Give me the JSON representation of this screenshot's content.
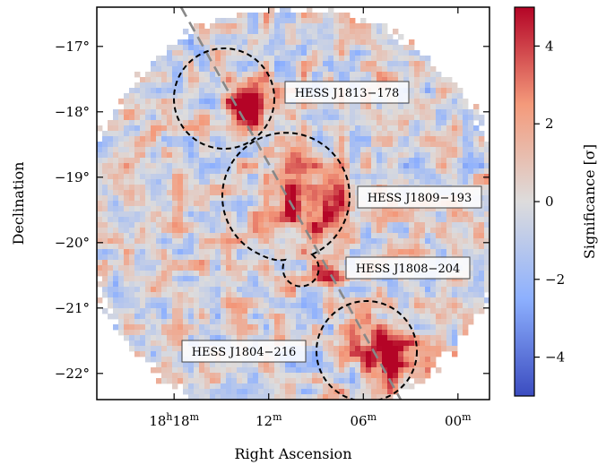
{
  "chart_data": {
    "type": "heatmap",
    "title": "",
    "xlabel": "Right Ascension",
    "ylabel": "Declination",
    "x_ticks": [
      {
        "h": "18",
        "m": "18",
        "label_sup_h": "h",
        "label_sup_m": "m",
        "ra_min": 18
      },
      {
        "h": "",
        "m": "12",
        "label_sup_m": "m",
        "ra_min": 12
      },
      {
        "h": "",
        "m": "06",
        "label_sup_m": "m",
        "ra_min": 6
      },
      {
        "h": "",
        "m": "00",
        "label_sup_m": "m",
        "ra_min": 0
      }
    ],
    "y_ticks": [
      "−17°",
      "−18°",
      "−19°",
      "−20°",
      "−21°",
      "−22°"
    ],
    "y_tick_values": [
      -17,
      -18,
      -19,
      -20,
      -21,
      -22
    ],
    "xlim_ra_min": [
      22.9,
      -2.0
    ],
    "ylim_dec": [
      -22.4,
      -16.4
    ],
    "colorbar": {
      "label": "Significance [σ]",
      "range": [
        -5,
        5
      ],
      "ticks": [
        "4",
        "2",
        "0",
        "−2",
        "−4"
      ],
      "tick_values": [
        4,
        2,
        0,
        -2,
        -4
      ],
      "cmap": "coolwarm",
      "low_color": "#3b4cc0",
      "mid_color": "#dddcdc",
      "high_color": "#b40426"
    },
    "sources": [
      {
        "name": "HESS J1813−178",
        "ra_min": 13.4,
        "dec": -17.85,
        "peak_sigma": 6
      },
      {
        "name": "HESS J1809−193",
        "ra_min": 9.4,
        "dec": -19.35,
        "peak_sigma": 5
      },
      {
        "name": "HESS J1808−204",
        "ra_min": 8.3,
        "dec": -20.4,
        "peak_sigma": 4
      },
      {
        "name": "HESS J1804−216",
        "ra_min": 4.6,
        "dec": -21.65,
        "peak_sigma": 7
      }
    ],
    "galactic_plane_color": "#888888",
    "region_color": "#000000"
  }
}
